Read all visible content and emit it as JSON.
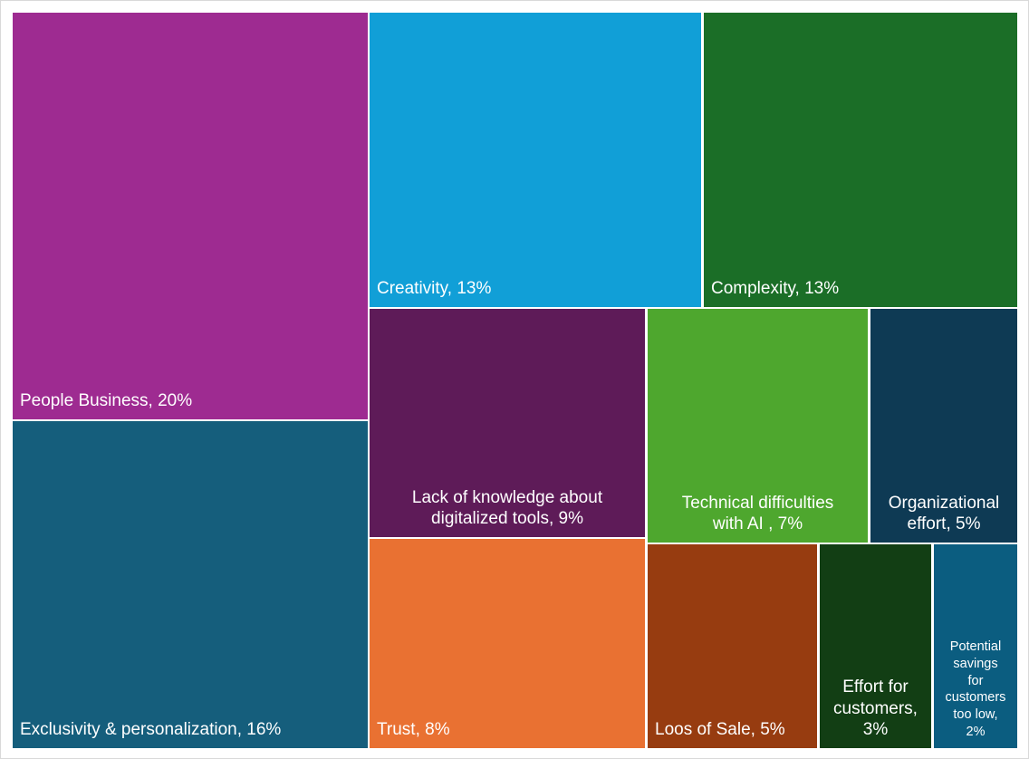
{
  "chart_data": {
    "type": "treemap",
    "items": [
      {
        "name": "People Business",
        "value": 20,
        "unit": "%",
        "label": "People Business, 20%",
        "color": "#9e2b91"
      },
      {
        "name": "Exclusivity & personalization",
        "value": 16,
        "unit": "%",
        "label": "Exclusivity & personalization, 16%",
        "color": "#155e7c"
      },
      {
        "name": "Creativity",
        "value": 13,
        "unit": "%",
        "label": "Creativity, 13%",
        "color": "#119fd7"
      },
      {
        "name": "Complexity",
        "value": 13,
        "unit": "%",
        "label": "Complexity, 13%",
        "color": "#1b6e27"
      },
      {
        "name": "Lack of knowledge about digitalized tools",
        "value": 9,
        "unit": "%",
        "label": "Lack of knowledge about\ndigitalized tools, 9%",
        "color": "#5e1b58"
      },
      {
        "name": "Trust",
        "value": 8,
        "unit": "%",
        "label": "Trust, 8%",
        "color": "#e97132"
      },
      {
        "name": "Technical difficulties with AI",
        "value": 7,
        "unit": "%",
        "label": "Technical difficulties\nwith AI , 7%",
        "color": "#4ea72e"
      },
      {
        "name": "Organizational effort",
        "value": 5,
        "unit": "%",
        "label": "Organizational\neffort, 5%",
        "color": "#0e3a54"
      },
      {
        "name": "Loos of Sale",
        "value": 5,
        "unit": "%",
        "label": "Loos of Sale, 5%",
        "color": "#973c10"
      },
      {
        "name": "Effort for customers",
        "value": 3,
        "unit": "%",
        "label": "Effort for\ncustomers,\n3%",
        "color": "#123e14"
      },
      {
        "name": "Potential savings for customers too low",
        "value": 2,
        "unit": "%",
        "label": "Potential\nsavings\nfor\ncustomers\ntoo low,\n2%",
        "color": "#0b5d80"
      }
    ]
  }
}
